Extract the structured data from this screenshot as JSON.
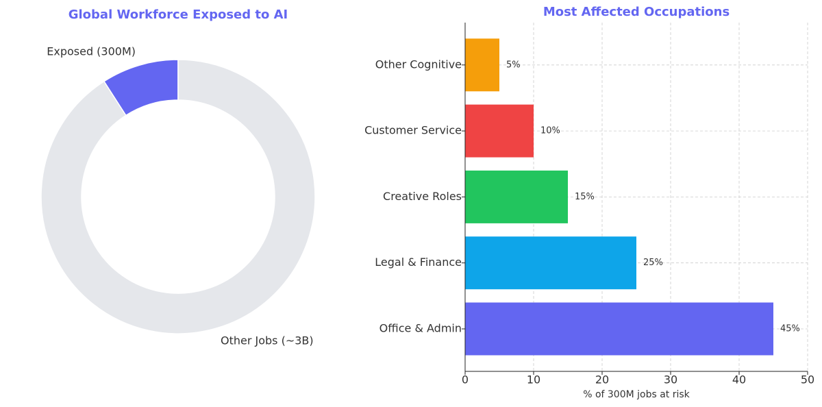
{
  "chart_data": [
    {
      "type": "pie",
      "title": "Global Workforce Exposed to AI",
      "categories": [
        "Exposed (300M)",
        "Other Jobs (~3B)"
      ],
      "values": [
        300,
        3000
      ],
      "colors": [
        "#6366f1",
        "#e5e7eb"
      ]
    },
    {
      "type": "bar",
      "title": "Most Affected Occupations",
      "orientation": "horizontal",
      "categories": [
        "Office & Admin",
        "Legal & Finance",
        "Creative Roles",
        "Customer Service",
        "Other Cognitive"
      ],
      "values": [
        45,
        25,
        15,
        10,
        5
      ],
      "value_labels": [
        "45%",
        "25%",
        "15%",
        "10%",
        "5%"
      ],
      "colors": [
        "#6366f1",
        "#0ea5e9",
        "#22c55e",
        "#ef4444",
        "#f59e0b"
      ],
      "xlabel": "% of 300M jobs at risk",
      "xlim": [
        0,
        50
      ],
      "xticks": [
        0,
        10,
        20,
        30,
        40,
        50
      ],
      "grid": true
    }
  ]
}
